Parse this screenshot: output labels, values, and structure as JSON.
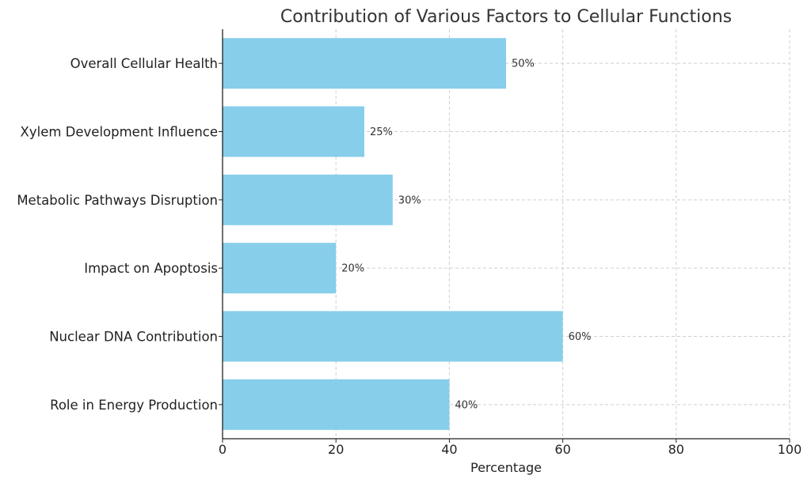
{
  "chart_data": {
    "type": "bar",
    "orientation": "horizontal",
    "title": "Contribution of Various Factors to Cellular Functions",
    "xlabel": "Percentage",
    "ylabel": "",
    "xlim": [
      0,
      100
    ],
    "xticks": [
      "0",
      "20",
      "40",
      "60",
      "80",
      "100"
    ],
    "categories": [
      "Role in Energy Production",
      "Nuclear DNA Contribution",
      "Impact on Apoptosis",
      "Metabolic Pathways Disruption",
      "Xylem Development Influence",
      "Overall Cellular Health"
    ],
    "values": [
      40,
      60,
      20,
      30,
      25,
      50
    ],
    "data_labels": [
      "40%",
      "60%",
      "20%",
      "30%",
      "25%",
      "50%"
    ],
    "bar_color": "#87CEEB",
    "grid": true
  }
}
